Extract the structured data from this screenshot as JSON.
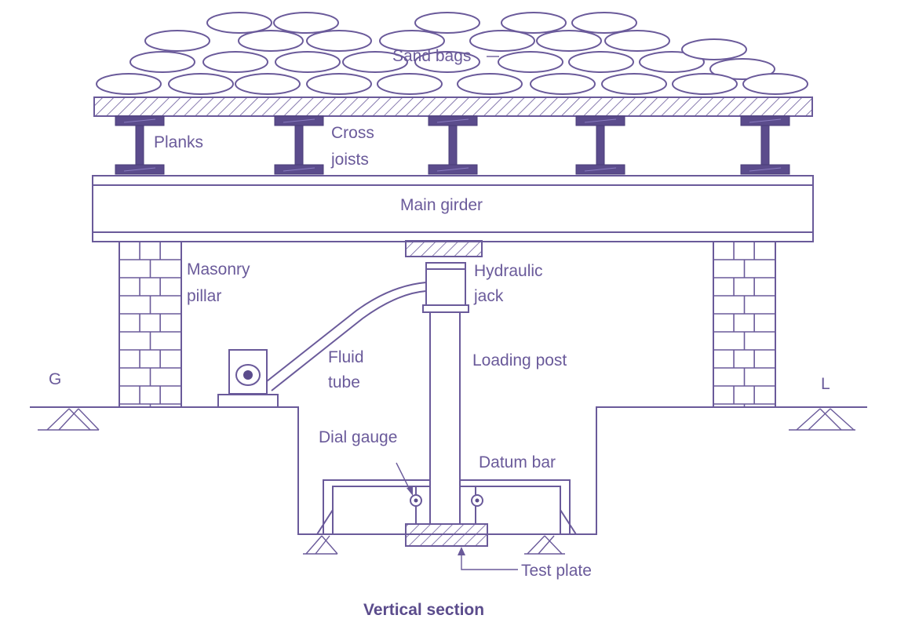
{
  "diagram": {
    "labels": {
      "sand_bags": "Sand bags",
      "planks": "Planks",
      "cross_joists_1": "Cross",
      "cross_joists_2": "joists",
      "main_girder": "Main girder",
      "masonry_pillar_1": "Masonry",
      "masonry_pillar_2": "pillar",
      "hydraulic_jack_1": "Hydraulic",
      "hydraulic_jack_2": "jack",
      "fluid_tube_1": "Fluid",
      "fluid_tube_2": "tube",
      "loading_post": "Loading post",
      "dial_gauge": "Dial gauge",
      "datum_bar": "Datum bar",
      "test_plate": "Test plate",
      "ground_left": "G",
      "ground_right": "L"
    },
    "caption": "Vertical section",
    "colors": {
      "line": "#6a5a9a",
      "dark_fill": "#5b4c8c",
      "background": "#ffffff"
    }
  }
}
